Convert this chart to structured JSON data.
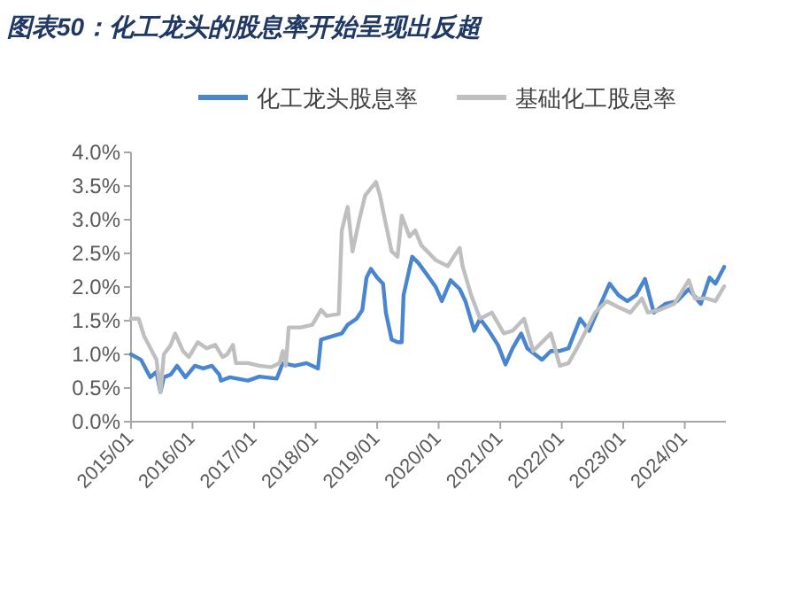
{
  "chart_data": {
    "type": "line",
    "title": "图表50：化工龙头的股息率开始呈现出反超",
    "xlim": [
      "2015-01-01",
      "2024-09-01"
    ],
    "xticks": [
      {
        "value": "2015-01-01",
        "label": "2015/01"
      },
      {
        "value": "2016-01-01",
        "label": "2016/01"
      },
      {
        "value": "2017-01-01",
        "label": "2017/01"
      },
      {
        "value": "2018-01-01",
        "label": "2018/01"
      },
      {
        "value": "2019-01-01",
        "label": "2019/01"
      },
      {
        "value": "2020-01-01",
        "label": "2020/01"
      },
      {
        "value": "2021-01-01",
        "label": "2021/01"
      },
      {
        "value": "2022-01-01",
        "label": "2022/01"
      },
      {
        "value": "2023-01-01",
        "label": "2023/01"
      },
      {
        "value": "2024-01-01",
        "label": "2024/01"
      }
    ],
    "ylim": [
      0,
      4
    ],
    "yticks": [
      {
        "value": 0,
        "label": "0.0%"
      },
      {
        "value": 0.5,
        "label": "0.5%"
      },
      {
        "value": 1,
        "label": "1.0%"
      },
      {
        "value": 1.5,
        "label": "1.5%"
      },
      {
        "value": 2,
        "label": "2.0%"
      },
      {
        "value": 2.5,
        "label": "2.5%"
      },
      {
        "value": 3,
        "label": "3.0%"
      },
      {
        "value": 3.5,
        "label": "3.5%"
      },
      {
        "value": 4,
        "label": "4.0%"
      }
    ],
    "grid": false,
    "legend": "top",
    "marker": "none",
    "line_style": "solid",
    "series": [
      {
        "name": "化工龙头股息率",
        "color": "#4a86d0",
        "x": [
          "2015-01-01",
          "2015-03-01",
          "2015-04-25",
          "2015-06-01",
          "2015-06-25",
          "2015-07-15",
          "2015-08-25",
          "2015-10-01",
          "2015-11-20",
          "2016-01-15",
          "2016-03-05",
          "2016-04-25",
          "2016-06-08",
          "2016-06-18",
          "2016-08-10",
          "2016-11-25",
          "2017-02-01",
          "2017-05-15",
          "2017-06-20",
          "2017-08-30",
          "2017-11-08",
          "2018-01-15",
          "2018-02-02",
          "2018-04-12",
          "2018-06-05",
          "2018-07-10",
          "2018-09-01",
          "2018-10-05",
          "2018-10-30",
          "2018-11-25",
          "2019-01-01",
          "2019-02-05",
          "2019-02-22",
          "2019-03-28",
          "2019-05-02",
          "2019-05-27",
          "2019-06-07",
          "2019-07-28",
          "2019-09-02",
          "2019-10-25",
          "2019-12-15",
          "2020-01-20",
          "2020-03-12",
          "2020-05-05",
          "2020-06-08",
          "2020-07-30",
          "2020-09-03",
          "2020-10-25",
          "2020-12-18",
          "2021-02-01",
          "2021-03-15",
          "2021-05-05",
          "2021-06-10",
          "2021-09-05",
          "2021-10-28",
          "2021-12-20",
          "2022-02-10",
          "2022-04-20",
          "2022-06-12",
          "2022-08-20",
          "2022-10-12",
          "2022-12-03",
          "2023-01-25",
          "2023-03-18",
          "2023-05-10",
          "2023-07-01",
          "2023-09-08",
          "2023-11-16",
          "2024-01-25",
          "2024-04-05",
          "2024-05-27",
          "2024-07-01",
          "2024-08-22"
        ],
        "values": [
          1.0,
          0.92,
          0.66,
          0.74,
          0.44,
          0.66,
          0.7,
          0.83,
          0.66,
          0.83,
          0.79,
          0.83,
          0.7,
          0.61,
          0.66,
          0.61,
          0.67,
          0.64,
          0.87,
          0.83,
          0.87,
          0.79,
          1.22,
          1.27,
          1.31,
          1.44,
          1.53,
          1.66,
          2.14,
          2.27,
          2.14,
          2.05,
          1.62,
          1.22,
          1.18,
          1.18,
          1.88,
          2.45,
          2.36,
          2.18,
          2.0,
          1.79,
          2.1,
          1.97,
          1.79,
          1.35,
          1.53,
          1.35,
          1.14,
          0.85,
          1.09,
          1.31,
          1.09,
          0.92,
          1.05,
          1.05,
          1.09,
          1.53,
          1.35,
          1.75,
          2.05,
          1.88,
          1.79,
          1.88,
          2.12,
          1.62,
          1.75,
          1.79,
          1.97,
          1.75,
          2.14,
          2.05,
          2.3
        ]
      },
      {
        "name": "基础化工股息率",
        "color": "#bfbfbf",
        "x": [
          "2015-01-01",
          "2015-02-15",
          "2015-03-20",
          "2015-06-01",
          "2015-06-25",
          "2015-07-15",
          "2015-08-25",
          "2015-09-20",
          "2015-11-05",
          "2015-12-10",
          "2016-02-01",
          "2016-03-25",
          "2016-05-15",
          "2016-06-28",
          "2016-07-25",
          "2016-08-28",
          "2016-09-15",
          "2016-11-25",
          "2017-02-01",
          "2017-04-10",
          "2017-06-01",
          "2017-06-20",
          "2017-07-08",
          "2017-07-25",
          "2017-10-05",
          "2017-12-12",
          "2018-02-02",
          "2018-03-08",
          "2018-05-18",
          "2018-06-05",
          "2018-07-10",
          "2018-08-08",
          "2018-09-18",
          "2018-10-22",
          "2018-12-25",
          "2019-01-18",
          "2019-02-22",
          "2019-03-28",
          "2019-05-02",
          "2019-05-27",
          "2019-07-12",
          "2019-08-15",
          "2019-09-20",
          "2019-12-15",
          "2020-02-25",
          "2020-03-30",
          "2020-05-05",
          "2020-05-22",
          "2020-07-12",
          "2020-09-03",
          "2020-11-12",
          "2021-01-22",
          "2021-03-15",
          "2021-05-22",
          "2021-07-15",
          "2021-09-05",
          "2021-10-28",
          "2021-12-20",
          "2022-02-10",
          "2022-04-20",
          "2022-07-17",
          "2022-09-25",
          "2022-12-03",
          "2023-02-12",
          "2023-04-22",
          "2023-05-27",
          "2023-08-05",
          "2023-10-30",
          "2024-01-25",
          "2024-03-01",
          "2024-05-10",
          "2024-07-01",
          "2024-08-22"
        ],
        "values": [
          1.53,
          1.53,
          1.27,
          0.92,
          0.44,
          1.0,
          1.14,
          1.31,
          1.05,
          0.96,
          1.18,
          1.09,
          1.14,
          0.96,
          1.0,
          1.14,
          0.87,
          0.87,
          0.83,
          0.81,
          0.87,
          1.05,
          0.83,
          1.4,
          1.4,
          1.44,
          1.66,
          1.57,
          1.6,
          2.84,
          3.19,
          2.53,
          3.01,
          3.36,
          3.56,
          3.36,
          2.93,
          2.53,
          2.45,
          3.06,
          2.75,
          2.84,
          2.62,
          2.4,
          2.31,
          2.45,
          2.58,
          2.31,
          1.88,
          1.53,
          1.62,
          1.31,
          1.35,
          1.53,
          1.05,
          1.18,
          1.31,
          0.83,
          0.87,
          1.18,
          1.62,
          1.79,
          1.7,
          1.62,
          1.83,
          1.62,
          1.66,
          1.75,
          2.1,
          1.83,
          1.83,
          1.79,
          2.01
        ]
      }
    ]
  }
}
